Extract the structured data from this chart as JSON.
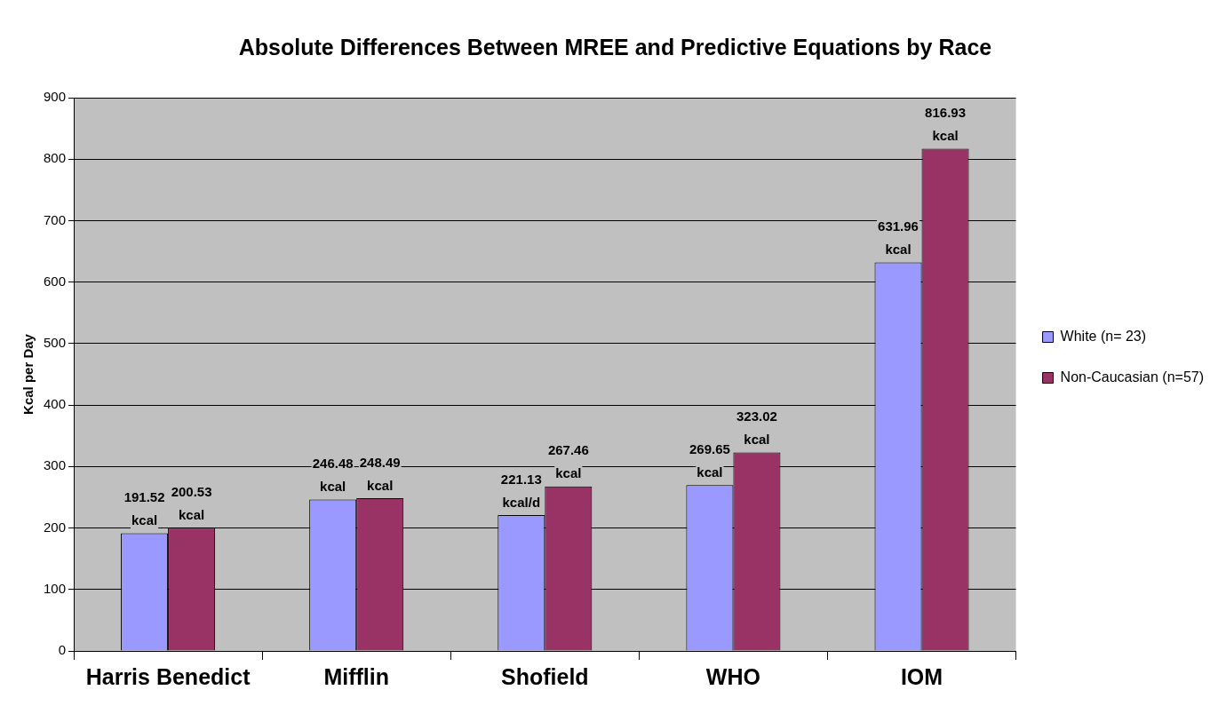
{
  "chart_data": {
    "type": "bar",
    "title": "Absolute Differences Between MREE and Predictive Equations by Race",
    "ylabel": "Kcal per Day",
    "categories": [
      "Harris Benedict",
      "Mifflin",
      "Shofield",
      "WHO",
      "IOM"
    ],
    "series": [
      {
        "name": "White (n= 23)",
        "color": "#9999ff",
        "values": [
          191.52,
          246.48,
          221.13,
          269.65,
          631.96
        ],
        "value_labels": [
          "191.52 kcal",
          "246.48 kcal",
          "221.13 kcal/d",
          "269.65 kcal",
          "631.96 kcal"
        ]
      },
      {
        "name": "Non-Caucasian (n=57)",
        "color": "#993366",
        "values": [
          200.53,
          248.49,
          267.46,
          323.02,
          816.93
        ],
        "value_labels": [
          "200.53 kcal",
          "248.49 kcal",
          "267.46 kcal",
          "323.02 kcal",
          "816.93 kcal"
        ]
      }
    ],
    "ylim": [
      0,
      900
    ],
    "yticks": [
      0,
      100,
      200,
      300,
      400,
      500,
      600,
      700,
      800,
      900
    ],
    "grid": "y",
    "legend": "right"
  }
}
